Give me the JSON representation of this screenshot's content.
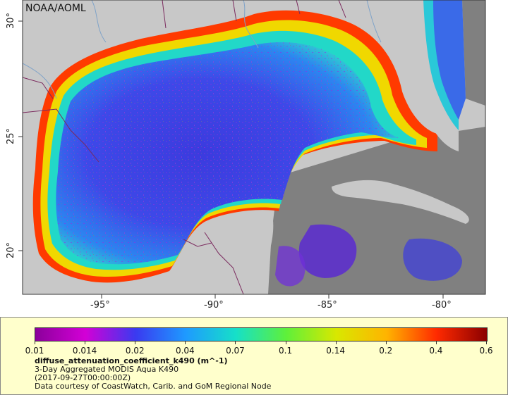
{
  "map": {
    "credit": "NOAA/AOML",
    "lat_ticks": [
      "30°",
      "25°",
      "20°"
    ],
    "lon_ticks": [
      "-95°",
      "-90°",
      "-85°",
      "-80°"
    ],
    "colors": {
      "land": "#c8c8c8",
      "no_data": "#808080",
      "ocean_background": "#3a4be6",
      "border": "#7b2a5e",
      "river": "#7ea2c8"
    }
  },
  "legend": {
    "colorbar_ticks": [
      "0.01",
      "0.014",
      "0.02",
      "0.04",
      "0.07",
      "0.1",
      "0.14",
      "0.2",
      "0.4",
      "0.6"
    ],
    "colorbar_colors": [
      "#8b009b",
      "#d300d6",
      "#3a3af0",
      "#1e9aff",
      "#16e0c8",
      "#5ef03a",
      "#d8e800",
      "#ffb400",
      "#ff2a00",
      "#8b0000"
    ],
    "variable": "diffuse_attenuation_coefficient_k490 (m^-1)",
    "dataset": "3-Day Aggregated MODIS Aqua K490",
    "time": "(2017-09-27T00:00:00Z)",
    "courtesy": "Data courtesy of CoastWatch, Carib. and GoM Regional Node"
  }
}
